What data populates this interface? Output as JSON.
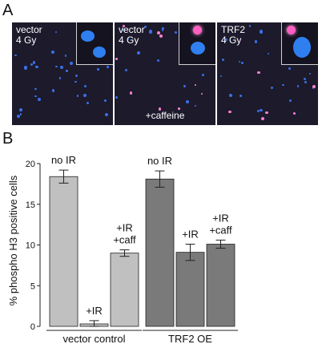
{
  "panel_a": {
    "letter": "A",
    "images": [
      {
        "line1": "vector",
        "line2": "4 Gy",
        "condition": ""
      },
      {
        "line1": "vector",
        "line2": "4 Gy",
        "condition": "+caffeine"
      },
      {
        "line1": "TRF2",
        "line2": "4 Gy",
        "condition": ""
      }
    ]
  },
  "chart_data": {
    "panel_letter": "B",
    "type": "bar",
    "ylabel": "% phospho H3 positive cells",
    "xlabel": "",
    "ylim": [
      0,
      20
    ],
    "yticks": [
      0,
      5,
      10,
      15,
      20
    ],
    "grid": false,
    "groups": [
      {
        "name": "vector control",
        "color": "#c0c0c0",
        "bars": [
          {
            "label": "no IR",
            "value": 18.4,
            "error": 0.8
          },
          {
            "label": "+IR",
            "value": 0.3,
            "error": 0.4
          },
          {
            "label": "+IR\n+caff",
            "value": 9.0,
            "error": 0.4
          }
        ]
      },
      {
        "name": "TRF2 OE",
        "color": "#7a7a7a",
        "bars": [
          {
            "label": "no IR",
            "value": 18.1,
            "error": 1.0
          },
          {
            "label": "+IR",
            "value": 9.1,
            "error": 1.0
          },
          {
            "label": "+IR\n+caff",
            "value": 10.1,
            "error": 0.5
          }
        ]
      }
    ]
  }
}
